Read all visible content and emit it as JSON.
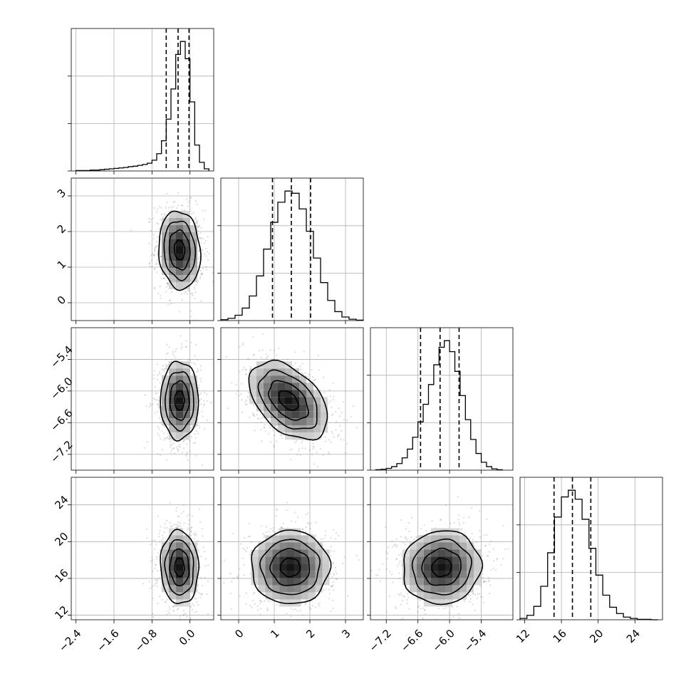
{
  "chart_data": {
    "type": "corner",
    "parameters": [
      {
        "index": 0,
        "range": [
          -2.5,
          0.5
        ],
        "ticks": [
          -2.4,
          -1.6,
          -0.8,
          0.0
        ],
        "tick_labels": [
          "−2.4",
          "−1.6",
          "−0.8",
          "0.0"
        ],
        "quantiles": [
          -0.5,
          -0.25,
          -0.02
        ],
        "hist": {
          "edges": [
            -2.4,
            -2.3,
            -2.2,
            -2.1,
            -2.0,
            -1.9,
            -1.8,
            -1.7,
            -1.6,
            -1.5,
            -1.4,
            -1.3,
            -1.2,
            -1.1,
            -1.0,
            -0.9,
            -0.8,
            -0.7,
            -0.6,
            -0.5,
            -0.4,
            -0.3,
            -0.2,
            -0.1,
            0.0,
            0.1,
            0.2,
            0.3,
            0.4
          ],
          "counts": [
            1,
            1,
            1,
            2,
            2,
            3,
            4,
            5,
            6,
            7,
            8,
            10,
            11,
            13,
            15,
            18,
            25,
            40,
            70,
            120,
            190,
            270,
            300,
            260,
            160,
            60,
            20,
            5
          ]
        }
      },
      {
        "index": 1,
        "range": [
          -0.5,
          3.5
        ],
        "ticks": [
          0,
          1,
          2,
          3
        ],
        "tick_labels": [
          "0",
          "1",
          "2",
          "3"
        ],
        "quantiles": [
          0.95,
          1.48,
          2.02
        ],
        "hist": {
          "edges": [
            -0.5,
            -0.3,
            -0.1,
            0.1,
            0.3,
            0.5,
            0.7,
            0.9,
            1.1,
            1.3,
            1.5,
            1.7,
            1.9,
            2.1,
            2.3,
            2.5,
            2.7,
            2.9,
            3.1,
            3.3,
            3.5
          ],
          "counts": [
            2,
            5,
            12,
            28,
            55,
            100,
            160,
            220,
            265,
            290,
            285,
            250,
            200,
            140,
            85,
            45,
            20,
            8,
            3,
            1
          ]
        }
      },
      {
        "index": 2,
        "range": [
          -7.5,
          -4.8
        ],
        "ticks": [
          -7.2,
          -6.6,
          -6.0,
          -5.4
        ],
        "tick_labels": [
          "−7.2",
          "−6.6",
          "−6.0",
          "−5.4"
        ],
        "quantiles": [
          -6.55,
          -6.18,
          -5.82
        ],
        "hist": {
          "edges": [
            -7.4,
            -7.3,
            -7.2,
            -7.1,
            -7.0,
            -6.9,
            -6.8,
            -6.7,
            -6.6,
            -6.5,
            -6.4,
            -6.3,
            -6.2,
            -6.1,
            -6.0,
            -5.9,
            -5.8,
            -5.7,
            -5.6,
            -5.5,
            -5.4,
            -5.3,
            -5.2,
            -5.1,
            -5.0
          ],
          "counts": [
            1,
            2,
            4,
            8,
            15,
            28,
            48,
            75,
            110,
            150,
            195,
            240,
            280,
            295,
            270,
            225,
            170,
            115,
            70,
            38,
            18,
            8,
            3,
            1
          ]
        }
      },
      {
        "index": 3,
        "range": [
          11.5,
          27.0
        ],
        "ticks": [
          12,
          16,
          20,
          24
        ],
        "tick_labels": [
          "12",
          "16",
          "20",
          "24"
        ],
        "quantiles": [
          15.2,
          17.2,
          19.2
        ],
        "hist": {
          "edges": [
            11.5,
            12.25,
            13.0,
            13.75,
            14.5,
            15.25,
            16.0,
            16.75,
            17.5,
            18.25,
            19.0,
            19.75,
            20.5,
            21.25,
            22.0,
            22.75,
            23.5,
            24.25,
            25.0,
            25.75,
            26.5
          ],
          "counts": [
            3,
            10,
            30,
            75,
            150,
            230,
            275,
            290,
            270,
            225,
            160,
            100,
            55,
            28,
            14,
            6,
            3,
            1,
            1,
            0
          ]
        }
      }
    ],
    "pairs": [
      {
        "x": 0,
        "y": 1,
        "center": [
          -0.22,
          1.48
        ],
        "sigma": [
          0.22,
          0.55
        ],
        "rho": -0.1
      },
      {
        "x": 0,
        "y": 2,
        "center": [
          -0.22,
          -6.18
        ],
        "sigma": [
          0.2,
          0.37
        ],
        "rho": 0.0
      },
      {
        "x": 1,
        "y": 2,
        "center": [
          1.4,
          -6.18
        ],
        "sigma": [
          0.55,
          0.37
        ],
        "rho": -0.45
      },
      {
        "x": 0,
        "y": 3,
        "center": [
          -0.22,
          17.2
        ],
        "sigma": [
          0.2,
          2.0
        ],
        "rho": -0.05
      },
      {
        "x": 1,
        "y": 3,
        "center": [
          1.45,
          17.2
        ],
        "sigma": [
          0.55,
          2.0
        ],
        "rho": 0.0
      },
      {
        "x": 2,
        "y": 3,
        "center": [
          -6.15,
          17.2
        ],
        "sigma": [
          0.37,
          2.0
        ],
        "rho": 0.05
      }
    ],
    "contour_levels_sigma": [
      0.5,
      1.0,
      1.5,
      2.0
    ],
    "grid": true
  }
}
